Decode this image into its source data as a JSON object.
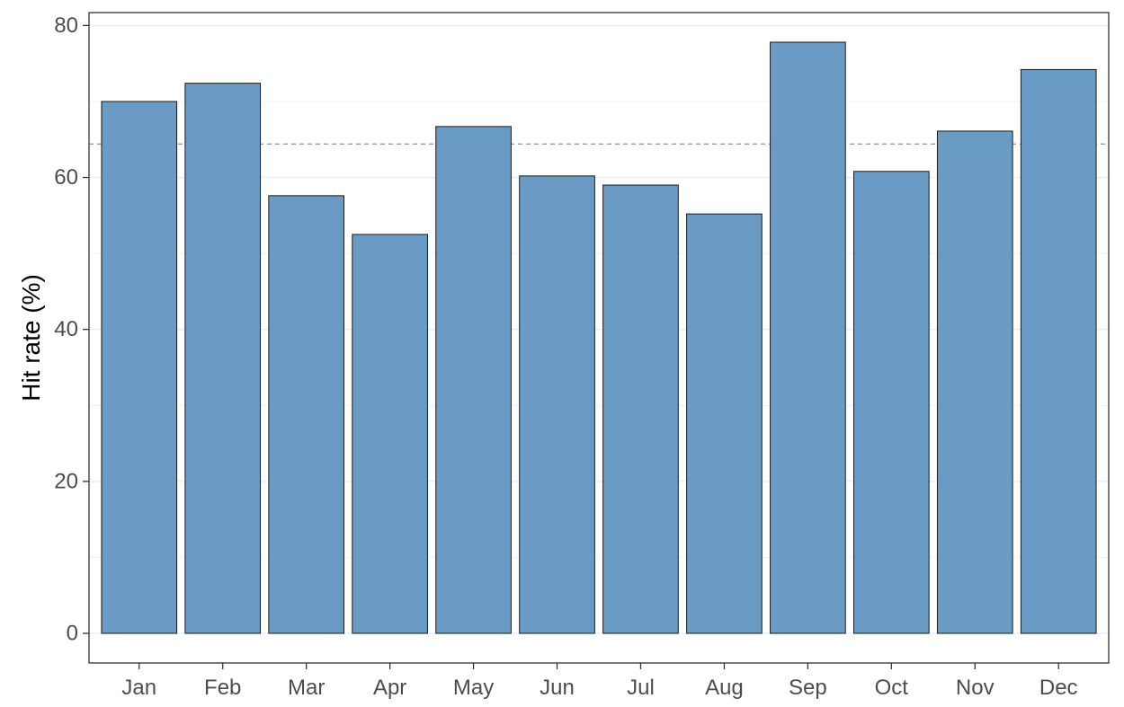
{
  "chart_data": {
    "type": "bar",
    "categories": [
      "Jan",
      "Feb",
      "Mar",
      "Apr",
      "May",
      "Jun",
      "Jul",
      "Aug",
      "Sep",
      "Oct",
      "Nov",
      "Dec"
    ],
    "values": [
      70.0,
      72.4,
      57.6,
      52.5,
      66.7,
      60.2,
      59.0,
      55.2,
      77.8,
      60.8,
      66.1,
      74.2
    ],
    "title": "",
    "xlabel": "",
    "ylabel": "Hit rate (%)",
    "ylim": [
      -3.9,
      81.7
    ],
    "yticks": [
      0,
      20,
      40,
      60,
      80
    ],
    "reference_line": {
      "value": 64.4,
      "style": "dashed"
    },
    "grid": true,
    "colors": {
      "bar_fill": "#6a9bc4",
      "bar_stroke": "#1a1a1a",
      "reference_line": "#9e9e9e",
      "grid": "#ebebeb",
      "panel_border": "#333333"
    }
  }
}
